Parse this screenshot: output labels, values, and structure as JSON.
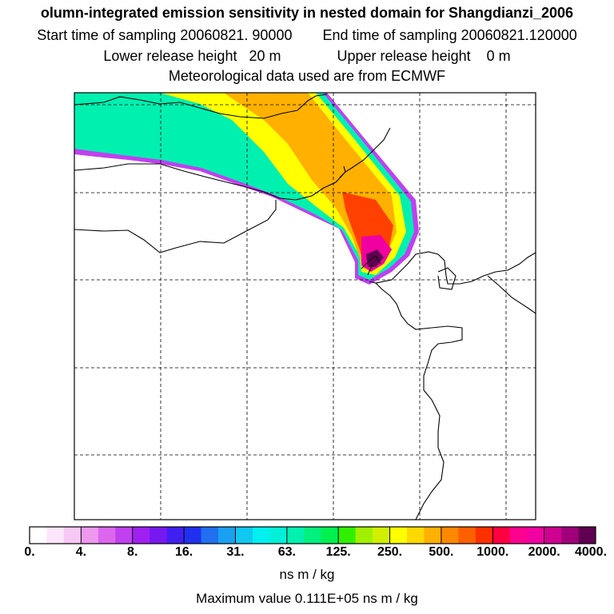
{
  "header": {
    "title": "olumn-integrated emission sensitivity in nested domain for Shangdianzi_2006",
    "start_label": "Start time of sampling 20060821. 90000",
    "end_label": "End time of sampling 20060821.120000",
    "lower_label": "Lower release height   20 m",
    "upper_label": "Upper release height    0 m",
    "met_label": "Meteorological data used are from ECMWF"
  },
  "colorbar": {
    "ticks": [
      "0.",
      "4.",
      "8.",
      "16.",
      "31.",
      "63.",
      "125.",
      "250.",
      "500.",
      "1000.",
      "2000.",
      "4000."
    ],
    "colors": [
      "#ffffff",
      "#fbe6fb",
      "#f6c8f6",
      "#ee98ee",
      "#dc66ee",
      "#c040f0",
      "#a020f0",
      "#7818f0",
      "#4020f0",
      "#2030f0",
      "#2070f0",
      "#1aa0f0",
      "#10c8f0",
      "#00f0f0",
      "#00f0d8",
      "#00f0b0",
      "#00f080",
      "#00f050",
      "#30f000",
      "#a0f000",
      "#d0f000",
      "#ffff00",
      "#ffd800",
      "#ffb000",
      "#ff8800",
      "#ff6000",
      "#ff3000",
      "#ff0040",
      "#ff0090",
      "#f000a0",
      "#d00090",
      "#a0007a",
      "#600050"
    ],
    "unit": "ns m / kg"
  },
  "footer": {
    "max_value": "Maximum value  0.111E+05 ns m / kg"
  }
}
